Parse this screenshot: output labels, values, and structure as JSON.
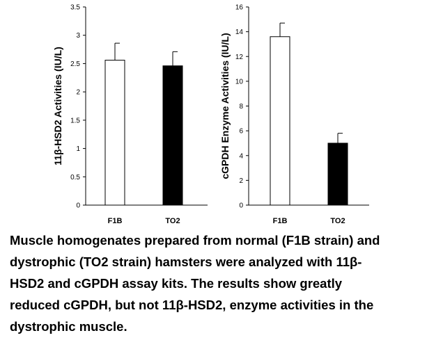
{
  "chart_data": [
    {
      "type": "bar",
      "categories": [
        "F1B",
        "TO2"
      ],
      "values": [
        2.56,
        2.46
      ],
      "errors": [
        0.3,
        0.25
      ],
      "bar_colors": [
        "#ffffff",
        "#000000"
      ],
      "ylabel": "11β-HSD2 Activities (IU/L)",
      "xlabel": "",
      "ylim": [
        0,
        3.5
      ],
      "yticks": [
        "0",
        "0.5",
        "1",
        "1.5",
        "2",
        "2.5",
        "3",
        "3.5"
      ],
      "grid": false
    },
    {
      "type": "bar",
      "categories": [
        "F1B",
        "TO2"
      ],
      "values": [
        13.6,
        5.0
      ],
      "errors": [
        1.1,
        0.8
      ],
      "bar_colors": [
        "#ffffff",
        "#000000"
      ],
      "ylabel": "cGPDH Enzyme Activities (IU/L)",
      "xlabel": "",
      "ylim": [
        0,
        16
      ],
      "yticks": [
        "0",
        "2",
        "4",
        "6",
        "8",
        "10",
        "12",
        "14",
        "16"
      ],
      "grid": false
    }
  ],
  "caption": {
    "lines": [
      "Muscle homogenates prepared from normal (F1B strain) and",
      "dystrophic (TO2 strain) hamsters were analyzed with 11β-",
      "HSD2 and cGPDH assay kits. The results show greatly",
      "reduced cGPDH, but not 11β-HSD2, enzyme activities in the",
      "dystrophic muscle."
    ]
  }
}
